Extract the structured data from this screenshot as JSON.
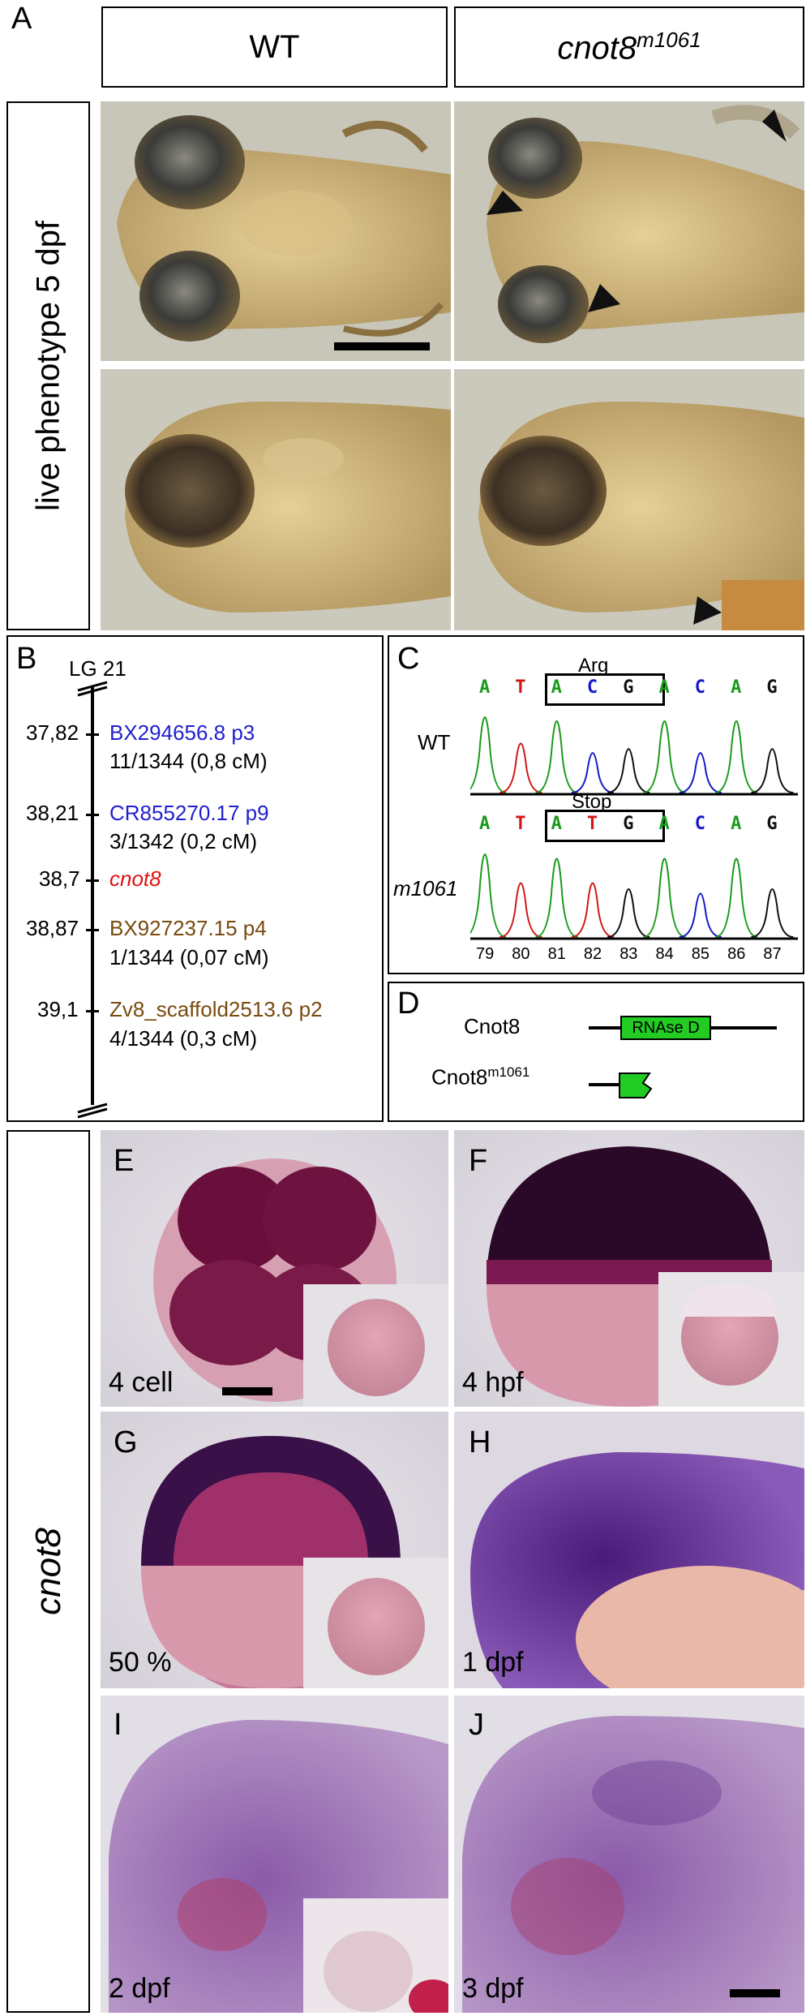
{
  "panelA": {
    "letter": "A",
    "col_wt": "WT",
    "col_mut": "cnot8",
    "col_mut_sup": "m1061",
    "row_label": "live phenotype 5 dpf"
  },
  "panelB": {
    "letter": "B",
    "lg": "LG 21",
    "markers": [
      {
        "pos": "37,82",
        "name": "BX294656.8 p3",
        "sub": "11/1344 (0,8 cM)",
        "color": "#1f1fd0"
      },
      {
        "pos": "38,21",
        "name": "CR855270.17 p9",
        "sub": "3/1342 (0,2 cM)",
        "color": "#1f1fd0"
      },
      {
        "pos": "38,7",
        "name": "cnot8",
        "sub": "",
        "color": "#e01010"
      },
      {
        "pos": "38,87",
        "name": "BX927237.15 p4",
        "sub": "1/1344 (0,07 cM)",
        "color": "#7a4a10"
      },
      {
        "pos": "39,1",
        "name": "Zv8_scaffold2513.6 p2",
        "sub": "4/1344 (0,3 cM)",
        "color": "#7a4a10"
      }
    ]
  },
  "panelC": {
    "letter": "C",
    "wt_label": "WT",
    "mut_label": "m1061",
    "wt_box_label": "Arg",
    "mut_box_label": "Stop",
    "wt_bases": [
      "A",
      "T",
      "A",
      "C",
      "G",
      "A",
      "C",
      "A",
      "G"
    ],
    "mut_bases": [
      "A",
      "T",
      "A",
      "T",
      "G",
      "A",
      "C",
      "A",
      "G"
    ],
    "positions": [
      "79",
      "80",
      "81",
      "82",
      "83",
      "84",
      "85",
      "86",
      "87"
    ],
    "base_colors": {
      "A": "#1a9a1a",
      "T": "#d01818",
      "C": "#1818c8",
      "G": "#111111"
    }
  },
  "panelD": {
    "letter": "D",
    "protein_wt": "Cnot8",
    "protein_mut": "Cnot8",
    "protein_mut_sup": "m1061",
    "domain_label": "RNAse D",
    "domain_color": "#22cc22"
  },
  "ish": {
    "side_label": "cnot8",
    "panels": [
      {
        "letter": "E",
        "stage": "4 cell"
      },
      {
        "letter": "F",
        "stage": "4 hpf"
      },
      {
        "letter": "G",
        "stage": "50 %"
      },
      {
        "letter": "H",
        "stage": "1 dpf"
      },
      {
        "letter": "I",
        "stage": "2 dpf"
      },
      {
        "letter": "J",
        "stage": "3 dpf"
      }
    ]
  }
}
